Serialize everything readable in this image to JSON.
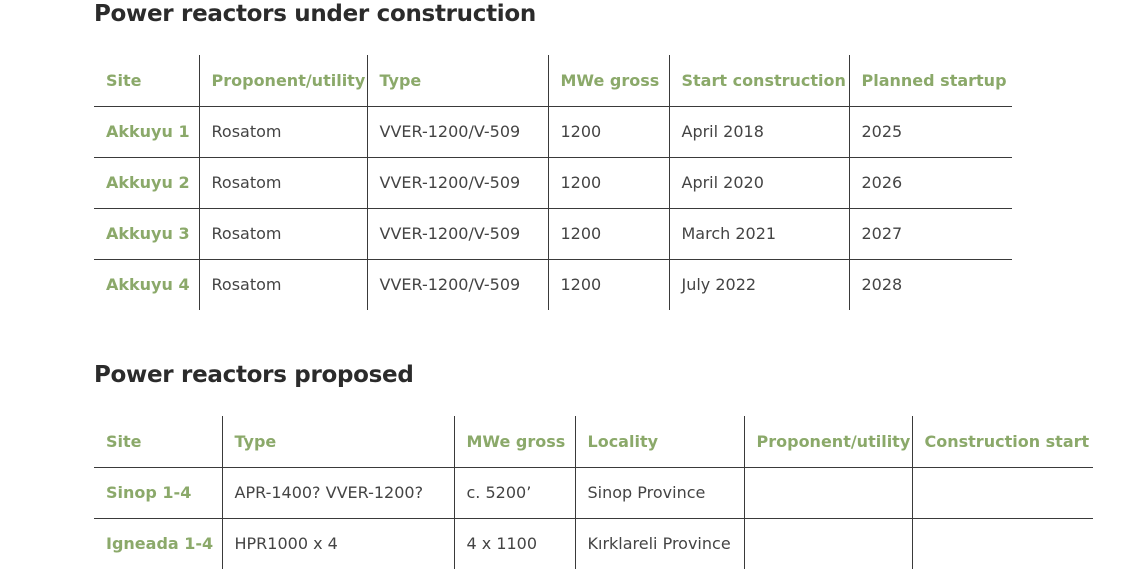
{
  "section1": {
    "title": "Power reactors under construction",
    "headers": [
      "Site",
      "Proponent/utility",
      "Type",
      "MWe gross",
      "Start construction",
      "Planned startup"
    ],
    "rows": [
      [
        "Akkuyu 1",
        "Rosatom",
        "VVER-1200/V-509",
        "1200",
        "April 2018",
        "2025"
      ],
      [
        "Akkuyu 2",
        "Rosatom",
        "VVER-1200/V-509",
        "1200",
        "April 2020",
        "2026"
      ],
      [
        "Akkuyu 3",
        "Rosatom",
        "VVER-1200/V-509",
        "1200",
        "March 2021",
        "2027"
      ],
      [
        "Akkuyu 4",
        "Rosatom",
        "VVER-1200/V-509",
        "1200",
        "July 2022",
        "2028"
      ]
    ]
  },
  "section2": {
    "title": "Power reactors proposed",
    "headers": [
      "Site",
      "Type",
      "MWe gross",
      "Locality",
      "Proponent/utility",
      "Construction start"
    ],
    "rows": [
      [
        "Sinop 1-4",
        "APR-1400? VVER-1200?",
        "c. 5200’",
        "Sinop Province",
        "",
        ""
      ],
      [
        "Igneada 1-4",
        "HPR1000 x 4",
        "4 x 1100",
        "Kırklareli Province",
        "",
        ""
      ]
    ]
  }
}
